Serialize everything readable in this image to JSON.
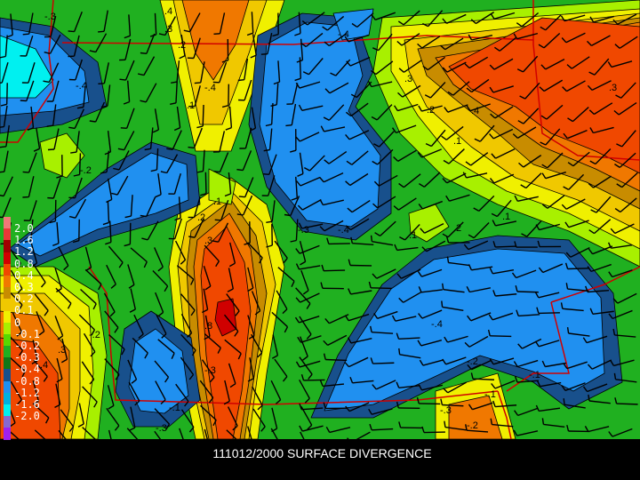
{
  "title": "111012/2000 SURFACE DIVERGENCE",
  "legend": {
    "labels": [
      "2.0",
      "1.6",
      "1.2",
      "0.8",
      "0.4",
      "0.3",
      "0.2",
      "0.1",
      "0",
      "-0.1",
      "-0.2",
      "-0.3",
      "-0.4",
      "-0.8",
      "-1.2",
      "-1.6",
      "-2.0"
    ],
    "colors": [
      "#f07878",
      "#e83838",
      "#a00000",
      "#d00000",
      "#f04800",
      "#f07800",
      "#c88c00",
      "#f0c800",
      "#f0f000",
      "#a8f000",
      "#58d800",
      "#20b020",
      "#107818",
      "#18508c",
      "#2090f0",
      "#00b0e0",
      "#00f0f0",
      "#8868d0",
      "#a020f0"
    ]
  },
  "colors": {
    "boundary": "#d00000",
    "contour": "#000000",
    "barb": "#000000"
  },
  "contour_labels": [
    "-.3",
    "-.4",
    "-.2",
    "-.3",
    "-.4",
    "-.3",
    "-.4",
    "-.1",
    "-.2",
    "-.3",
    "-.4",
    "-.4",
    "-.3",
    "-.2",
    "-.1",
    "-.2",
    "-.1",
    ".4",
    ".3",
    ".2",
    ".1",
    ".3",
    ".2",
    ".4",
    ".1",
    ".3",
    ".1",
    ".2",
    ".3",
    ".1",
    ".3",
    ".4",
    ".8",
    ".2",
    ".1"
  ]
}
